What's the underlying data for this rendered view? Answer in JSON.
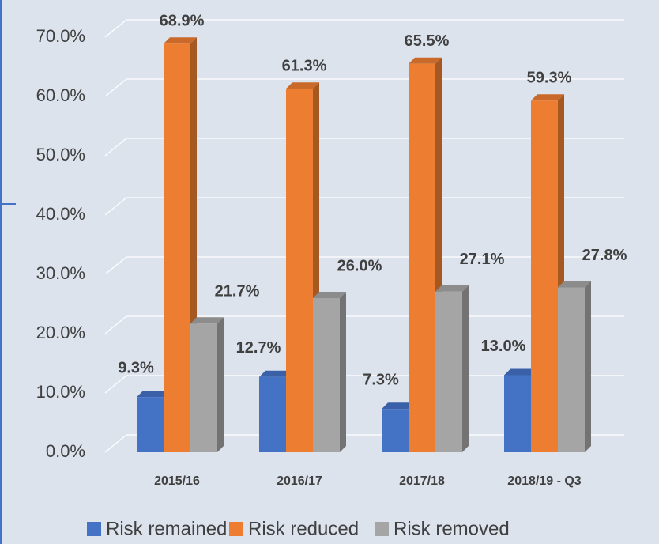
{
  "chart_data": {
    "type": "bar3d",
    "categories": [
      "2015/16",
      "2016/17",
      "2017/18",
      "2018/19 - Q3"
    ],
    "series": [
      {
        "name": "Risk remained",
        "color": "#4472c4",
        "values": [
          9.3,
          12.7,
          7.3,
          13.0
        ],
        "value_labels": [
          "9.3%",
          "12.7%",
          "7.3%",
          "13.0%"
        ]
      },
      {
        "name": "Risk reduced",
        "color": "#ed7d31",
        "values": [
          68.9,
          61.3,
          65.5,
          59.3
        ],
        "value_labels": [
          "68.9%",
          "61.3%",
          "65.5%",
          "59.3%"
        ]
      },
      {
        "name": "Risk removed",
        "color": "#a5a5a5",
        "values": [
          21.7,
          26.0,
          27.1,
          27.8
        ],
        "value_labels": [
          "21.7%",
          "26.0%",
          "27.1%",
          "27.8%"
        ]
      }
    ],
    "ylim": [
      0,
      70
    ],
    "yticks": [
      {
        "value": 0,
        "label": "0.0%"
      },
      {
        "value": 10,
        "label": "10.0%"
      },
      {
        "value": 20,
        "label": "20.0%"
      },
      {
        "value": 30,
        "label": "30.0%"
      },
      {
        "value": 40,
        "label": "40.0%"
      },
      {
        "value": 50,
        "label": "50.0%"
      },
      {
        "value": 60,
        "label": "60.0%"
      },
      {
        "value": 70,
        "label": "70.0%"
      }
    ],
    "grid": true,
    "legend": "bottom"
  }
}
